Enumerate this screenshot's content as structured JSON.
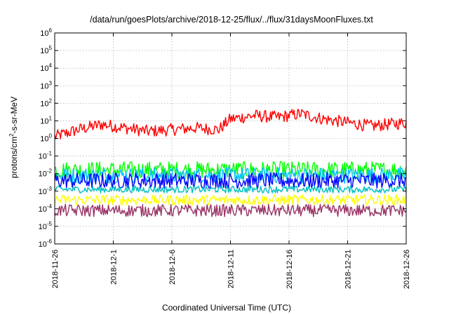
{
  "chart_data": {
    "type": "line",
    "title": "/data/run/goesPlots/archive/2018-12-25/flux/../flux/31daysMoonFluxes.txt",
    "xlabel": "Coordinated Universal Time (UTC)",
    "ylabel": {
      "base": "protons/cm",
      "sup": "2",
      "rest": "-s-sr-MeV"
    },
    "scale": "log",
    "grid": true,
    "ylim_exp": [
      -6,
      6
    ],
    "ytick_base": "10",
    "yticks_exp": [
      "-6",
      "-5",
      "-4",
      "-3",
      "-2",
      "-1",
      "0",
      "1",
      "2",
      "3",
      "4",
      "5",
      "6"
    ],
    "xlim": [
      "2018-11-26",
      "2018-12-26"
    ],
    "xticks": [
      "2018-11-26",
      "2018-12-1",
      "2018-12-6",
      "2018-12-11",
      "2018-12-16",
      "2018-12-21",
      "2018-12-26"
    ],
    "series": [
      {
        "color": "#ff0000",
        "x": [
          "2018-11-26",
          "2018-11-28",
          "2018-11-30",
          "2018-12-2",
          "2018-12-4",
          "2018-12-6",
          "2018-12-8",
          "2018-12-10",
          "2018-12-11",
          "2018-12-13",
          "2018-12-15",
          "2018-12-17",
          "2018-12-19",
          "2018-12-21",
          "2018-12-23",
          "2018-12-26"
        ],
        "log10_values": [
          0.1,
          0.5,
          0.8,
          0.6,
          0.4,
          0.5,
          0.6,
          0.5,
          1.1,
          1.3,
          1.2,
          1.4,
          1.1,
          0.9,
          0.7,
          0.9
        ],
        "noise_log10": 0.35
      },
      {
        "color": "#00ff00",
        "x": [
          "2018-11-26",
          "2018-12-26"
        ],
        "log10_values": [
          -1.8,
          -1.8
        ],
        "noise_log10": 0.5
      },
      {
        "color": "#00c0ff",
        "x": [
          "2018-11-26",
          "2018-12-26"
        ],
        "log10_values": [
          -2.1,
          -2.1
        ],
        "noise_log10": 0.45
      },
      {
        "color": "#0000ff",
        "x": [
          "2018-11-26",
          "2018-12-26"
        ],
        "log10_values": [
          -2.4,
          -2.4
        ],
        "noise_log10": 0.45
      },
      {
        "color": "#00c0c0",
        "x": [
          "2018-11-26",
          "2018-12-26"
        ],
        "log10_values": [
          -2.9,
          -2.9
        ],
        "noise_log10": 0.2
      },
      {
        "color": "#ffff00",
        "x": [
          "2018-11-26",
          "2018-12-26"
        ],
        "log10_values": [
          -3.5,
          -3.5
        ],
        "noise_log10": 0.3
      },
      {
        "color": "#993366",
        "x": [
          "2018-11-26",
          "2018-12-26"
        ],
        "log10_values": [
          -4.1,
          -4.1
        ],
        "noise_log10": 0.35
      }
    ]
  }
}
